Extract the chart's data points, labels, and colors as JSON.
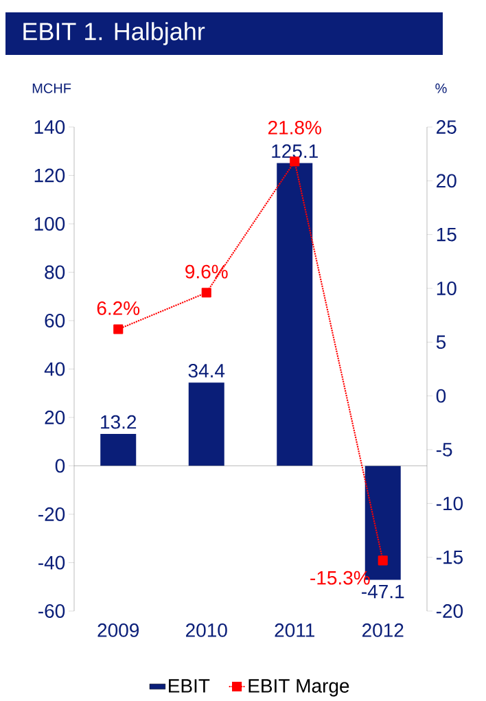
{
  "chart_data": {
    "type": "bar",
    "title": "EBIT 1. Halbjahr",
    "ylabel": "MCHF",
    "y2label": "%",
    "categories": [
      "2009",
      "2010",
      "2011",
      "2012"
    ],
    "series": [
      {
        "name": "EBIT",
        "color": "#0a1e78",
        "values": [
          13.2,
          34.4,
          125.1,
          -47.1
        ],
        "value_labels": [
          "13.2",
          "34.4",
          "125.1",
          "-47.1"
        ]
      },
      {
        "name": "EBIT Marge",
        "type": "line",
        "axis": "y2",
        "color": "#ff0000",
        "marker": "square",
        "line_style": "dotted",
        "values": [
          6.2,
          9.6,
          21.8,
          -15.3
        ],
        "value_labels": [
          "6.2%",
          "9.6%",
          "21.8%",
          "-15.3%"
        ]
      }
    ],
    "ylim": [
      -60,
      140
    ],
    "yticks": [
      -60,
      -40,
      -20,
      0,
      20,
      40,
      60,
      80,
      100,
      120,
      140
    ],
    "y2lim": [
      -20,
      25
    ],
    "y2ticks": [
      -20,
      -15,
      -10,
      -5,
      0,
      5,
      10,
      15,
      20,
      25
    ],
    "legend": "bottom"
  }
}
